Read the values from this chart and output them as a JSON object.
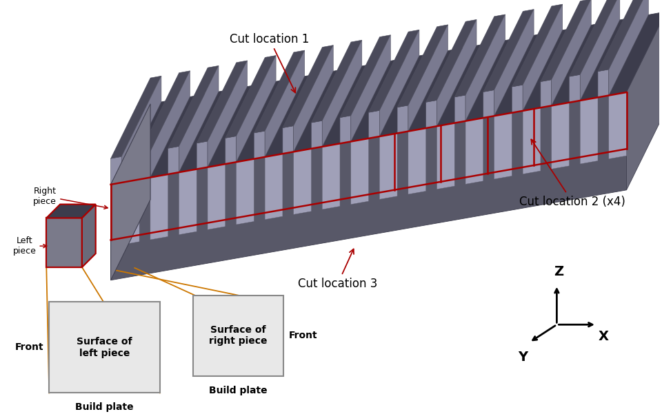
{
  "bg_color": "#ffffff",
  "cut_line_color": "#aa0000",
  "connector_color": "#cc7700",
  "bar_front_color": "#585868",
  "bar_top_color": "#3c3c4c",
  "bar_side_color": "#6a6a7a",
  "bar_left_face_color": "#7a7a8a",
  "fin_front_color": "#9090a8",
  "fin_top_color": "#4a4a5a",
  "slot_color": "#a0a0b8",
  "sq_fill": "#e8e8e8",
  "sq_edge": "#888888",
  "cut1_label": "Cut location 1",
  "cut2_label": "Cut location 2 (x4)",
  "cut3_label": "Cut location 3",
  "right_piece_label": "Right\npiece",
  "left_piece_label": "Left\npiece",
  "surface_left_label": "Surface of\nleft piece",
  "surface_right_label": "Surface of\nright piece",
  "front_label": "Front",
  "build_plate_label": "Build plate",
  "z_label": "Z",
  "x_label": "X",
  "y_label": "Y",
  "label_fs": 12,
  "small_fs": 9
}
